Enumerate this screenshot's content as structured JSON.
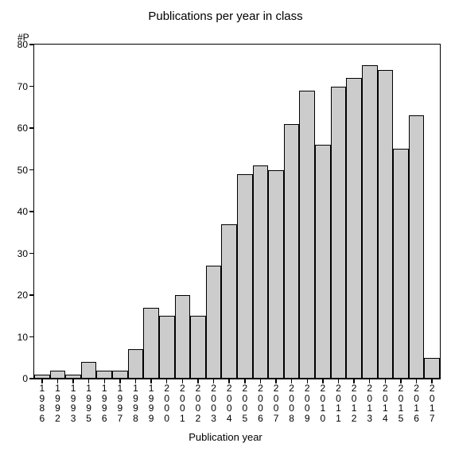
{
  "chart": {
    "type": "bar",
    "title": "Publications per year in class",
    "title_fontsize": 15,
    "y_axis_title": "#P",
    "x_axis_title": "Publication year",
    "label_fontsize": 13,
    "tick_fontsize": 12,
    "background_color": "#ffffff",
    "bar_fill": "#cccccc",
    "bar_border": "#000000",
    "axis_color": "#000000",
    "ylim": [
      0,
      80
    ],
    "ytick_step": 10,
    "categories": [
      "1986",
      "1992",
      "1993",
      "1995",
      "1996",
      "1997",
      "1998",
      "1999",
      "2000",
      "2001",
      "2002",
      "2003",
      "2004",
      "2005",
      "2006",
      "2007",
      "2008",
      "2009",
      "2010",
      "2011",
      "2012",
      "2013",
      "2014",
      "2015",
      "2016",
      "2017"
    ],
    "values": [
      1,
      2,
      1,
      4,
      2,
      2,
      7,
      17,
      15,
      20,
      15,
      27,
      37,
      49,
      51,
      50,
      61,
      69,
      56,
      70,
      72,
      75,
      74,
      55,
      63,
      5
    ],
    "bar_width_ratio": 1.0
  }
}
